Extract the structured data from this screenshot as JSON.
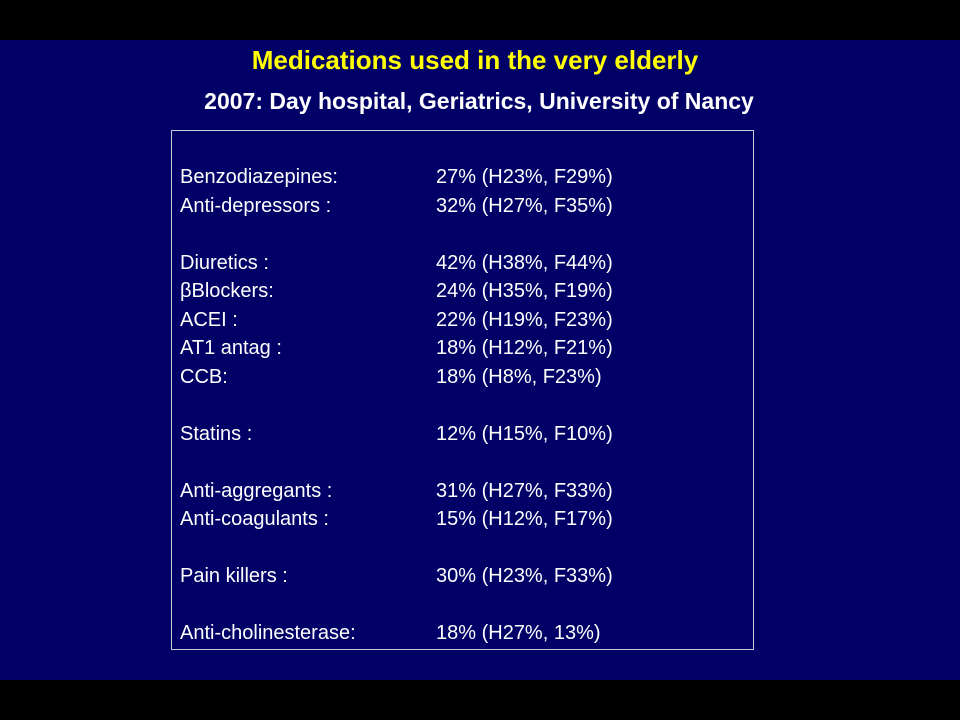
{
  "title": "Medications used in the very elderly",
  "subtitle": "2007: Day hospital, Geriatrics, University of Nancy",
  "rows": [
    {
      "medication": "Benzodiazepines:",
      "value": "27% (H23%,  F29%)"
    },
    {
      "medication": "Anti-depressors :",
      "value": "32% (H27%, F35%)"
    },
    null,
    {
      "medication": "Diuretics :",
      "value": "42% (H38%, F44%)"
    },
    {
      "medication": "βBlockers:",
      "value": "24% (H35%, F19%)"
    },
    {
      "medication": "ACEI :",
      "value": "22% (H19%, F23%)"
    },
    {
      "medication": "AT1 antag :",
      "value": "18% (H12%, F21%)"
    },
    {
      "medication": "CCB:",
      "value": "18% (H8%, F23%)"
    },
    null,
    {
      "medication": "Statins :",
      "value": "12% (H15%, F10%)"
    },
    null,
    {
      "medication": "Anti-aggregants :",
      "value": "31% (H27%, F33%)"
    },
    {
      "medication": "Anti-coagulants :",
      "value": "15% (H12%, F17%)"
    },
    null,
    {
      "medication": "Pain killers :",
      "value": "30% (H23%, F33%)"
    },
    null,
    {
      "medication": "Anti-cholinesterase:",
      "value": "18% (H27%, 13%)"
    }
  ]
}
